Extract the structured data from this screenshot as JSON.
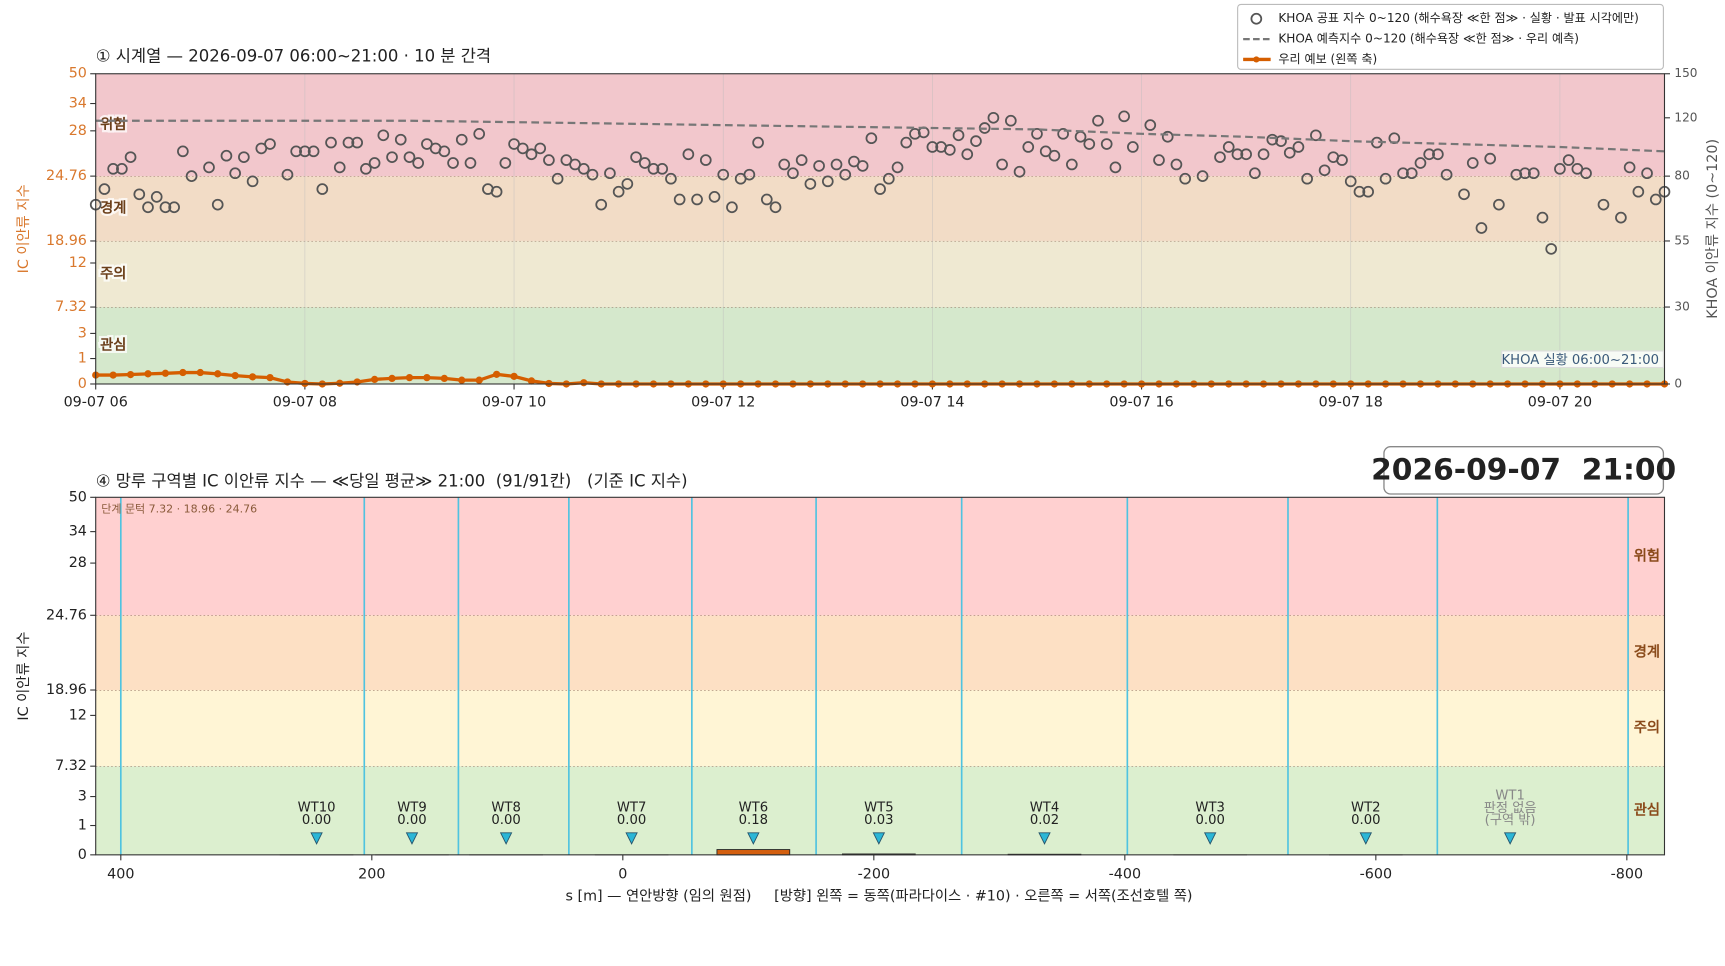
{
  "chart_data": [
    {
      "type": "line",
      "title": "① 시계열 — 2026-09-07 06:00~21:00 · 10 분 간격",
      "ylabel": "IC 이안류 지수",
      "y2label": "KHOA 이안류 지수 (0~120)",
      "annotation": "KHOA 실황 06:00~21:00",
      "yscale": "piecewise",
      "ylim": [
        0,
        50
      ],
      "yticks": [
        0,
        1,
        3,
        7.32,
        12,
        18.96,
        24.76,
        28,
        34,
        50
      ],
      "y2scale": "piecewise",
      "y2lim": [
        0,
        150
      ],
      "y2ticks": [
        0,
        30,
        55,
        80,
        120,
        150
      ],
      "xlim": [
        "06:00",
        "21:00"
      ],
      "xticks": [
        {
          "value": "06:00",
          "label": "09-07 06"
        },
        {
          "value": "08:00",
          "label": "09-07 08"
        },
        {
          "value": "10:00",
          "label": "09-07 10"
        },
        {
          "value": "12:00",
          "label": "09-07 12"
        },
        {
          "value": "14:00",
          "label": "09-07 14"
        },
        {
          "value": "16:00",
          "label": "09-07 16"
        },
        {
          "value": "18:00",
          "label": "09-07 18"
        },
        {
          "value": "20:00",
          "label": "09-07 20"
        }
      ],
      "bands": [
        {
          "name": "관심",
          "from": 0,
          "to": 7.32,
          "color": "#d5e8cc"
        },
        {
          "name": "주의",
          "from": 7.32,
          "to": 18.96,
          "color": "#efe9d2"
        },
        {
          "name": "경계",
          "from": 18.96,
          "to": 24.76,
          "color": "#f2dcc6"
        },
        {
          "name": "위험",
          "from": 24.76,
          "to": 50,
          "color": "#f2c7cc"
        }
      ],
      "grid": true,
      "legend": "upper right",
      "series": [
        {
          "name": "KHOA 공표 지수 0~120 (해수욕장 ≪한 점≫ · 실황 · 발표 시각에만)",
          "color": "#555555",
          "style": "markers",
          "axis": "y2",
          "x": [
            "06:00",
            "06:05",
            "06:10",
            "06:15",
            "06:20",
            "06:25",
            "06:30",
            "06:35",
            "06:40",
            "06:45",
            "06:50",
            "06:55",
            "07:05",
            "07:10",
            "07:15",
            "07:20",
            "07:25",
            "07:30",
            "07:35",
            "07:40",
            "07:50",
            "07:55",
            "08:00",
            "08:05",
            "08:10",
            "08:15",
            "08:20",
            "08:25",
            "08:30",
            "08:35",
            "08:40",
            "08:45",
            "08:50",
            "08:55",
            "09:00",
            "09:05",
            "09:10",
            "09:15",
            "09:20",
            "09:25",
            "09:30",
            "09:35",
            "09:40",
            "09:45",
            "09:50",
            "09:55",
            "10:00",
            "10:05",
            "10:10",
            "10:15",
            "10:20",
            "10:25",
            "10:30",
            "10:35",
            "10:40",
            "10:45",
            "10:50",
            "10:55",
            "11:00",
            "11:05",
            "11:10",
            "11:15",
            "11:20",
            "11:25",
            "11:30",
            "11:35",
            "11:40",
            "11:45",
            "11:50",
            "11:55",
            "12:00",
            "12:05",
            "12:10",
            "12:15",
            "12:20",
            "12:25",
            "12:30",
            "12:35",
            "12:40",
            "12:45",
            "12:50",
            "12:55",
            "13:00",
            "13:05",
            "13:10",
            "13:15",
            "13:20",
            "13:25",
            "13:30",
            "13:35",
            "13:40",
            "13:45",
            "13:50",
            "13:55",
            "14:00",
            "14:05",
            "14:10",
            "14:15",
            "14:20",
            "14:25",
            "14:30",
            "14:35",
            "14:40",
            "14:45",
            "14:50",
            "14:55",
            "15:00",
            "15:05",
            "15:10",
            "15:15",
            "15:20",
            "15:25",
            "15:30",
            "15:35",
            "15:40",
            "15:45",
            "15:50",
            "15:55",
            "16:05",
            "16:10",
            "16:15",
            "16:20",
            "16:25",
            "16:35",
            "16:45",
            "16:50",
            "16:55",
            "17:00",
            "17:05",
            "17:10",
            "17:15",
            "17:20",
            "17:25",
            "17:30",
            "17:35",
            "17:40",
            "17:45",
            "17:50",
            "17:55",
            "18:00",
            "18:05",
            "18:10",
            "18:15",
            "18:20",
            "18:25",
            "18:30",
            "18:35",
            "18:40",
            "18:45",
            "18:50",
            "18:55",
            "19:05",
            "19:10",
            "19:15",
            "19:20",
            "19:25",
            "19:35",
            "19:40",
            "19:45",
            "19:50",
            "19:55",
            "20:00",
            "20:05",
            "20:10",
            "20:15",
            "20:25",
            "20:35",
            "20:40",
            "20:45",
            "20:50",
            "20:55",
            "21:00"
          ],
          "values": [
            69,
            75,
            85,
            85,
            93,
            73,
            68,
            72,
            68,
            68,
            97,
            80,
            86,
            69,
            94,
            82,
            93,
            78,
            99,
            102,
            81,
            97,
            97,
            97,
            75,
            103,
            86,
            103,
            103,
            85,
            89,
            108,
            93,
            105,
            93,
            89,
            102,
            99,
            97,
            89,
            105,
            89,
            109,
            75,
            74,
            89,
            102,
            99,
            95,
            99,
            91,
            79,
            91,
            88,
            85,
            81,
            69,
            82,
            74,
            77,
            93,
            89,
            85,
            85,
            79,
            71,
            95,
            71,
            91,
            72,
            81,
            68,
            79,
            81,
            103,
            71,
            68,
            88,
            82,
            91,
            77,
            87,
            78,
            88,
            81,
            90,
            87,
            106,
            75,
            79,
            86,
            103,
            109,
            110,
            100,
            100,
            98,
            108,
            95,
            104,
            113,
            120,
            88,
            118,
            83,
            100,
            109,
            97,
            94,
            109,
            88,
            107,
            102,
            118,
            102,
            86,
            121,
            100,
            115,
            91,
            107,
            88,
            79,
            80,
            93,
            100,
            95,
            95,
            82,
            95,
            105,
            104,
            96,
            100,
            79,
            108,
            84,
            93,
            91,
            78,
            74,
            74,
            103,
            79,
            106,
            82,
            82,
            89,
            95,
            95,
            81,
            73,
            89,
            60,
            92,
            69,
            81,
            82,
            82,
            64,
            52,
            85,
            91,
            85,
            82,
            69,
            64,
            86,
            74,
            82,
            71,
            74
          ]
        },
        {
          "name": "KHOA 예측지수 0~120 (해수욕장 ≪한 점≫ · 우리 예측)",
          "color": "#777777",
          "style": "dashed",
          "axis": "y2",
          "x": [
            "06:00",
            "07:00",
            "08:00",
            "09:00",
            "10:00",
            "11:00",
            "12:00",
            "13:00",
            "14:00",
            "15:00",
            "16:00",
            "17:00",
            "18:00",
            "19:00",
            "20:00",
            "21:00"
          ],
          "values": [
            118,
            118,
            118,
            118,
            117,
            116,
            115,
            114,
            113,
            112,
            109,
            107,
            104,
            102,
            100,
            97
          ]
        },
        {
          "name": "우리 예보 (왼쪽 축)",
          "color": "#d55e00",
          "style": "line-markers",
          "x": [
            "06:00",
            "06:10",
            "06:20",
            "06:30",
            "06:40",
            "06:50",
            "07:00",
            "07:10",
            "07:20",
            "07:30",
            "07:40",
            "07:50",
            "08:00",
            "08:10",
            "08:20",
            "08:30",
            "08:40",
            "08:50",
            "09:00",
            "09:10",
            "09:20",
            "09:30",
            "09:40",
            "09:50",
            "10:00",
            "10:10",
            "10:20",
            "10:30",
            "10:40",
            "10:50",
            "11:00",
            "11:10",
            "11:20",
            "11:30",
            "11:40",
            "11:50",
            "12:00",
            "12:10",
            "12:20",
            "12:30",
            "12:40",
            "12:50",
            "13:00",
            "13:10",
            "13:20",
            "13:30",
            "13:40",
            "13:50",
            "14:00",
            "14:10",
            "14:20",
            "14:30",
            "14:40",
            "14:50",
            "15:00",
            "15:10",
            "15:20",
            "15:30",
            "15:40",
            "15:50",
            "16:00",
            "16:10",
            "16:20",
            "16:30",
            "16:40",
            "16:50",
            "17:00",
            "17:10",
            "17:20",
            "17:30",
            "17:40",
            "17:50",
            "18:00",
            "18:10",
            "18:20",
            "18:30",
            "18:40",
            "18:50",
            "19:00",
            "19:10",
            "19:20",
            "19:30",
            "19:40",
            "19:50",
            "20:00",
            "20:10",
            "20:20",
            "20:30",
            "20:40",
            "20:50",
            "21:00"
          ],
          "values": [
            0.35,
            0.35,
            0.37,
            0.4,
            0.42,
            0.45,
            0.45,
            0.4,
            0.33,
            0.28,
            0.25,
            0.08,
            0.02,
            0,
            0.03,
            0.08,
            0.18,
            0.22,
            0.25,
            0.25,
            0.22,
            0.15,
            0.15,
            0.38,
            0.3,
            0.12,
            0.02,
            0,
            0.05,
            0,
            0,
            0,
            0,
            0,
            0,
            0,
            0,
            0,
            0,
            0,
            0,
            0,
            0,
            0,
            0,
            0,
            0,
            0,
            0,
            0,
            0,
            0,
            0,
            0,
            0,
            0,
            0,
            0,
            0,
            0,
            0,
            0,
            0,
            0,
            0,
            0,
            0,
            0,
            0,
            0,
            0,
            0,
            0,
            0,
            0,
            0,
            0,
            0,
            0,
            0,
            0,
            0,
            0,
            0,
            0,
            0,
            0,
            0,
            0,
            0,
            0
          ]
        }
      ]
    },
    {
      "type": "bar",
      "title": "④ 망루 구역별 IC 이안류 지수 — ≪당일 평균≫ 21:00  (91/91칸)   (기준 IC 지수)",
      "timestamp": "2026-09-07  21:00",
      "note": "단계 문턱 7.32 · 18.96 · 24.76",
      "ylabel": "IC 이안류 지수",
      "xlabel": "s [m] — 연안방향 (임의 원점)     [방향] 왼쪽 = 동쪽(파라다이스 · #10) · 오른쪽 = 서쪽(조선호텔 쪽)",
      "yscale": "piecewise",
      "ylim": [
        0,
        50
      ],
      "yticks": [
        0,
        1,
        3,
        7.32,
        12,
        18.96,
        24.76,
        28,
        34,
        50
      ],
      "xlim": [
        420,
        -830
      ],
      "xticks": [
        400,
        200,
        0,
        -200,
        -400,
        -600,
        -800
      ],
      "bands": [
        {
          "name": "관심",
          "from": 0,
          "to": 7.32,
          "color": "#dcefcf"
        },
        {
          "name": "주의",
          "from": 7.32,
          "to": 18.96,
          "color": "#fff5d5"
        },
        {
          "name": "경계",
          "from": 18.96,
          "to": 24.76,
          "color": "#fde0c4"
        },
        {
          "name": "위험",
          "from": 24.76,
          "to": 50,
          "color": "#ffd0d0"
        }
      ],
      "zone_edges": [
        400,
        206,
        131,
        43,
        -55,
        -154,
        -270,
        -402,
        -530,
        -649,
        -801
      ],
      "zone_color": "#4fc3e0",
      "categories": [
        "WT10",
        "WT9",
        "WT8",
        "WT7",
        "WT6",
        "WT5",
        "WT4",
        "WT3",
        "WT2",
        "WT1"
      ],
      "x": [
        244,
        168,
        93,
        -7,
        -104,
        -204,
        -336,
        -468,
        -592,
        -707
      ],
      "values": [
        0,
        0,
        0,
        0,
        0.18,
        0.03,
        0.02,
        0,
        0,
        null
      ],
      "value_labels": [
        "0.00",
        "0.00",
        "0.00",
        "0.00",
        "0.18",
        "0.03",
        "0.02",
        "0.00",
        "0.00",
        "판정 없음"
      ],
      "notes": [
        null,
        null,
        null,
        null,
        null,
        null,
        null,
        null,
        null,
        "(구역 밖)"
      ],
      "color": "#d35f0f"
    }
  ]
}
